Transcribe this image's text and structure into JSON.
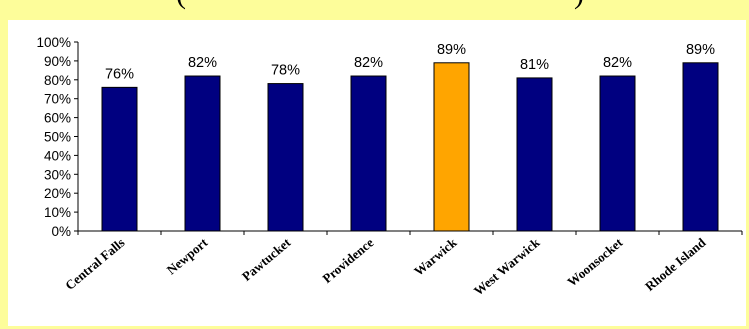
{
  "chart_data": {
    "type": "bar",
    "categories": [
      "Central Falls",
      "Newport",
      "Pawtucket",
      "Providence",
      "Warwick",
      "West Warwick",
      "Woonsocket",
      "Rhode Island"
    ],
    "values": [
      76,
      82,
      78,
      82,
      89,
      81,
      82,
      89
    ],
    "data_labels": [
      "76%",
      "82%",
      "78%",
      "82%",
      "89%",
      "81%",
      "82%",
      "89%"
    ],
    "y_ticks": [
      "0%",
      "10%",
      "20%",
      "30%",
      "40%",
      "50%",
      "60%",
      "70%",
      "80%",
      "90%",
      "100%"
    ],
    "ylim": [
      0,
      100
    ],
    "highlighted_category": "Warwick",
    "colors": {
      "bar": "#000080",
      "highlight": "#FFA500",
      "background": "#FDFD9A",
      "plot": "#FFFFFF"
    },
    "grid": false,
    "legend": "none"
  }
}
